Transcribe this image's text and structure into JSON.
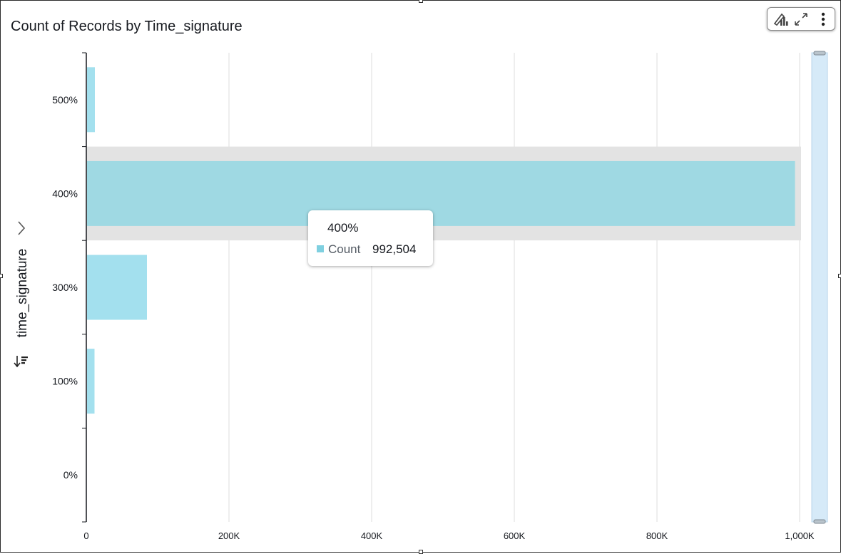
{
  "title": "Count of Records by Time_signature",
  "y_field": {
    "label": "time_signature",
    "expand_icon": "chevron-right-icon",
    "sort_icon": "sort-descending-icon"
  },
  "toolbar": {
    "icons": [
      "chart-type-icon",
      "expand-icon",
      "more-options-icon"
    ]
  },
  "tooltip": {
    "category": "400%",
    "series_label": "Count",
    "value": "992,504",
    "swatch_color": "#7fd0e0"
  },
  "colors": {
    "bar": "#a3e0ee",
    "bar_highlight": "#9fd9e3",
    "highlight_band": "#e3e3e3",
    "grid": "#dcdcdc",
    "scrollbar": "#d6eaf8"
  },
  "chart_data": {
    "type": "bar",
    "orientation": "horizontal",
    "title": "Count of Records by Time_signature",
    "ylabel": "time_signature",
    "xlabel": "",
    "categories": [
      "500%",
      "400%",
      "300%",
      "100%",
      "0%"
    ],
    "series": [
      {
        "values": [
          11000,
          992504,
          84000,
          10500,
          0
        ]
      }
    ],
    "xlim": [
      0,
      1000000
    ],
    "x_ticks": [
      {
        "value": 0,
        "label": "0"
      },
      {
        "value": 200000,
        "label": "200K"
      },
      {
        "value": 400000,
        "label": "400K"
      },
      {
        "value": 600000,
        "label": "600K"
      },
      {
        "value": 800000,
        "label": "800K"
      },
      {
        "value": 1000000,
        "label": "1,000K"
      }
    ],
    "grid": true,
    "highlighted_category": "400%"
  }
}
